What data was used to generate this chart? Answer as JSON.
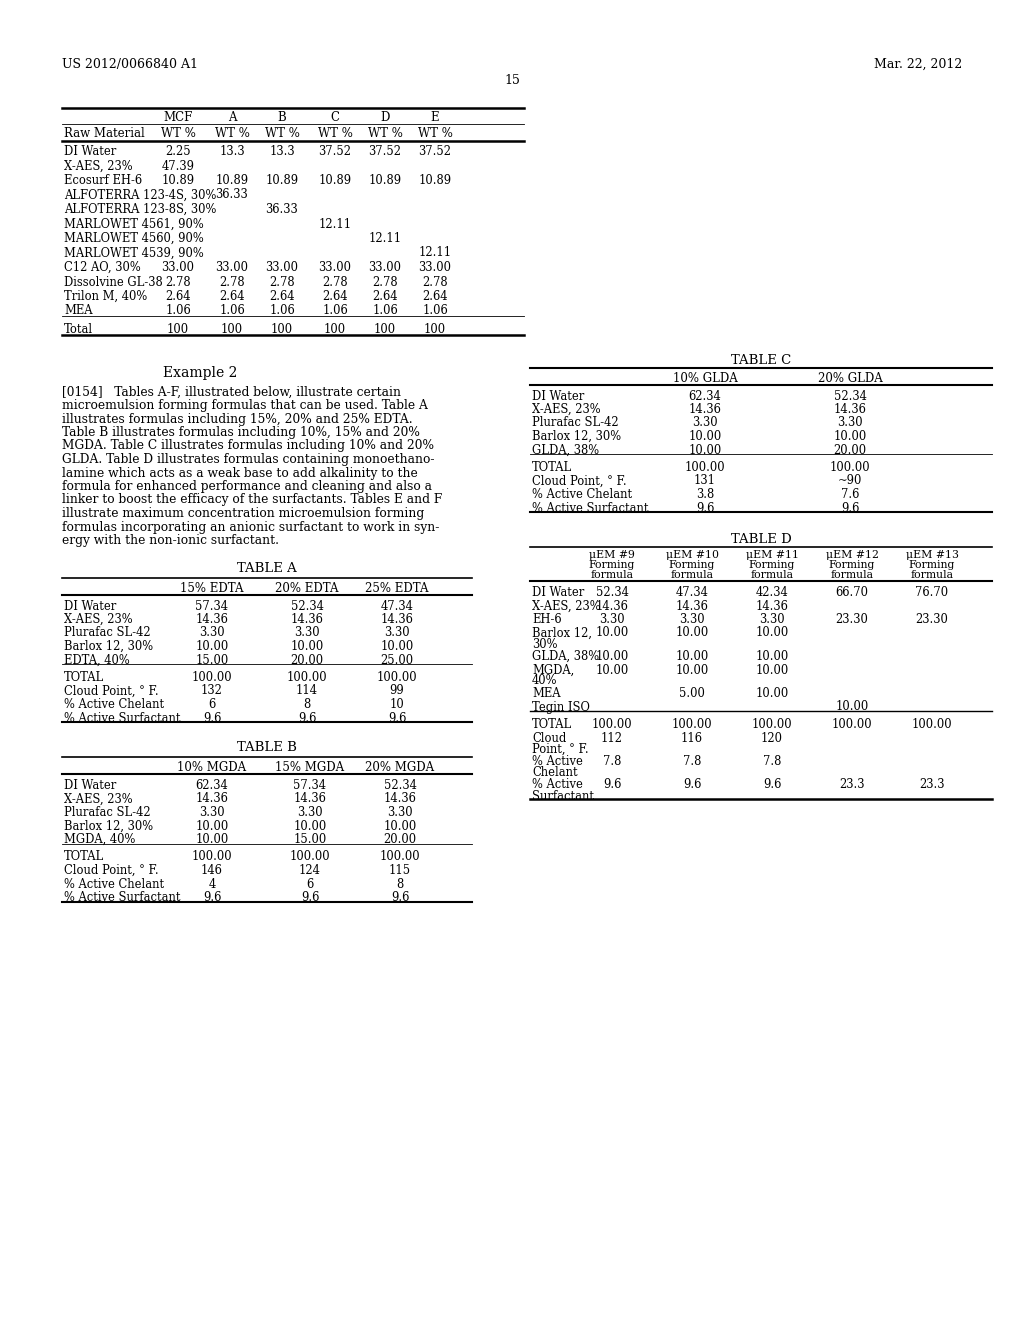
{
  "header_left": "US 2012/0066840 A1",
  "header_right": "Mar. 22, 2012",
  "page_number": "15",
  "background_color": "#ffffff",
  "top_table_rows": [
    [
      "DI Water",
      "2.25",
      "13.3",
      "13.3",
      "37.52",
      "37.52",
      "37.52"
    ],
    [
      "X-AES, 23%",
      "47.39",
      "",
      "",
      "",
      "",
      ""
    ],
    [
      "Ecosurf EH-6",
      "10.89",
      "10.89",
      "10.89",
      "10.89",
      "10.89",
      "10.89"
    ],
    [
      "ALFOTERRA 123-4S, 30%",
      "",
      "36.33",
      "",
      "",
      "",
      ""
    ],
    [
      "ALFOTERRA 123-8S, 30%",
      "",
      "",
      "36.33",
      "",
      "",
      ""
    ],
    [
      "MARLOWET 4561, 90%",
      "",
      "",
      "",
      "12.11",
      "",
      ""
    ],
    [
      "MARLOWET 4560, 90%",
      "",
      "",
      "",
      "",
      "12.11",
      ""
    ],
    [
      "MARLOWET 4539, 90%",
      "",
      "",
      "",
      "",
      "",
      "12.11"
    ],
    [
      "C12 AO, 30%",
      "33.00",
      "33.00",
      "33.00",
      "33.00",
      "33.00",
      "33.00"
    ],
    [
      "Dissolvine GL-38",
      "2.78",
      "2.78",
      "2.78",
      "2.78",
      "2.78",
      "2.78"
    ],
    [
      "Trilon M, 40%",
      "2.64",
      "2.64",
      "2.64",
      "2.64",
      "2.64",
      "2.64"
    ],
    [
      "MEA",
      "1.06",
      "1.06",
      "1.06",
      "1.06",
      "1.06",
      "1.06"
    ],
    [
      "Total",
      "100",
      "100",
      "100",
      "100",
      "100",
      "100"
    ]
  ],
  "example2_label": "Example 2",
  "para_lines": [
    "[0154]   Tables A-F, illustrated below, illustrate certain",
    "microemulsion forming formulas that can be used. Table A",
    "illustrates formulas including 15%, 20% and 25% EDTA.",
    "Table B illustrates formulas including 10%, 15% and 20%",
    "MGDA. Table C illustrates formulas including 10% and 20%",
    "GLDA. Table D illustrates formulas containing monoethano-",
    "lamine which acts as a weak base to add alkalinity to the",
    "formula for enhanced performance and cleaning and also a",
    "linker to boost the efficacy of the surfactants. Tables E and F",
    "illustrate maximum concentration microemulsion forming",
    "formulas incorporating an anionic surfactant to work in syn-",
    "ergy with the non-ionic surfactant."
  ],
  "tableA_title": "TABLE A",
  "tableA_cols": [
    "15% EDTA",
    "20% EDTA",
    "25% EDTA"
  ],
  "tableA_rows": [
    [
      "DI Water",
      "57.34",
      "52.34",
      "47.34"
    ],
    [
      "X-AES, 23%",
      "14.36",
      "14.36",
      "14.36"
    ],
    [
      "Plurafac SL-42",
      "3.30",
      "3.30",
      "3.30"
    ],
    [
      "Barlox 12, 30%",
      "10.00",
      "10.00",
      "10.00"
    ],
    [
      "EDTA, 40%",
      "15.00",
      "20.00",
      "25.00"
    ],
    [
      "TOTAL",
      "100.00",
      "100.00",
      "100.00"
    ],
    [
      "Cloud Point, ° F.",
      "132",
      "114",
      "99"
    ],
    [
      "% Active Chelant",
      "6",
      "8",
      "10"
    ],
    [
      "% Active Surfactant",
      "9.6",
      "9.6",
      "9.6"
    ]
  ],
  "tableB_title": "TABLE B",
  "tableB_cols": [
    "10% MGDA",
    "15% MGDA",
    "20% MGDA"
  ],
  "tableB_rows": [
    [
      "DI Water",
      "62.34",
      "57.34",
      "52.34"
    ],
    [
      "X-AES, 23%",
      "14.36",
      "14.36",
      "14.36"
    ],
    [
      "Plurafac SL-42",
      "3.30",
      "3.30",
      "3.30"
    ],
    [
      "Barlox 12, 30%",
      "10.00",
      "10.00",
      "10.00"
    ],
    [
      "MGDA, 40%",
      "10.00",
      "15.00",
      "20.00"
    ],
    [
      "TOTAL",
      "100.00",
      "100.00",
      "100.00"
    ],
    [
      "Cloud Point, ° F.",
      "146",
      "124",
      "115"
    ],
    [
      "% Active Chelant",
      "4",
      "6",
      "8"
    ],
    [
      "% Active Surfactant",
      "9.6",
      "9.6",
      "9.6"
    ]
  ],
  "tableC_title": "TABLE C",
  "tableC_cols": [
    "10% GLDA",
    "20% GLDA"
  ],
  "tableC_rows": [
    [
      "DI Water",
      "62.34",
      "52.34"
    ],
    [
      "X-AES, 23%",
      "14.36",
      "14.36"
    ],
    [
      "Plurafac SL-42",
      "3.30",
      "3.30"
    ],
    [
      "Barlox 12, 30%",
      "10.00",
      "10.00"
    ],
    [
      "GLDA, 38%",
      "10.00",
      "20.00"
    ],
    [
      "TOTAL",
      "100.00",
      "100.00"
    ],
    [
      "Cloud Point, ° F.",
      "131",
      "~90"
    ],
    [
      "% Active Chelant",
      "3.8",
      "7.6"
    ],
    [
      "% Active Surfactant",
      "9.6",
      "9.6"
    ]
  ],
  "tableD_title": "TABLE D",
  "tableD_cols": [
    "μEM #9\nForming\nformula",
    "μEM #10\nForming\nformula",
    "μEM #11\nForming\nformula",
    "μEM #12\nForming\nformula",
    "μEM #13\nForming\nformula"
  ],
  "tableD_rows": [
    [
      "DI Water",
      "52.34",
      "47.34",
      "42.34",
      "66.70",
      "76.70"
    ],
    [
      "X-AES, 23%",
      "14.36",
      "14.36",
      "14.36",
      "",
      ""
    ],
    [
      "EH-6",
      "3.30",
      "3.30",
      "3.30",
      "23.30",
      "23.30"
    ],
    [
      "Barlox 12,\n30%",
      "10.00",
      "10.00",
      "10.00",
      "",
      ""
    ],
    [
      "GLDA, 38%",
      "10.00",
      "10.00",
      "10.00",
      "",
      ""
    ],
    [
      "MGDA,\n40%",
      "10.00",
      "10.00",
      "10.00",
      "",
      ""
    ],
    [
      "MEA",
      "",
      "5.00",
      "10.00",
      "",
      ""
    ],
    [
      "Tegin ISO",
      "",
      "",
      "",
      "10.00",
      ""
    ],
    [
      "TOTAL",
      "100.00",
      "100.00",
      "100.00",
      "100.00",
      "100.00"
    ],
    [
      "Cloud\nPoint, ° F.",
      "112",
      "116",
      "120",
      "",
      ""
    ],
    [
      "% Active\nChelant",
      "7.8",
      "7.8",
      "7.8",
      "",
      ""
    ],
    [
      "% Active\nSurfactant",
      "9.6",
      "9.6",
      "9.6",
      "23.3",
      "23.3"
    ]
  ]
}
